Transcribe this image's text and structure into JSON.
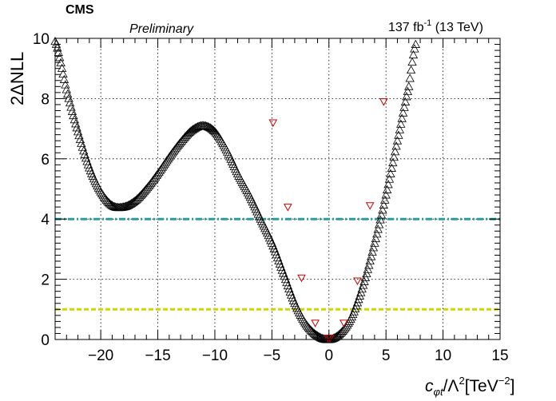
{
  "header": {
    "experiment": "CMS",
    "status": "Preliminary",
    "lumi": "137 fb",
    "lumi_exp": "-1",
    "energy": " (13 TeV)"
  },
  "axes": {
    "ylabel": "2ΔNLL",
    "xlabel_main": "c",
    "xlabel_sub": "φt",
    "xlabel_tail": "/Λ",
    "xlabel_sq": "2",
    "xlabel_unit": "[TeV",
    "xlabel_unit_exp": "−2",
    "xlabel_close": "]"
  },
  "colors": {
    "scan_marker": "#000000",
    "points_marker": "#cc0000",
    "line_2sigma": "#2a9d9d",
    "line_1sigma": "#d4d400",
    "grid": "#000000"
  },
  "chart_data": {
    "type": "scatter",
    "xlim": [
      -24,
      15
    ],
    "ylim": [
      0,
      10
    ],
    "x_ticks": [
      -20,
      -15,
      -10,
      -5,
      0,
      5,
      10,
      15
    ],
    "x_tick_labels": [
      "−20",
      "−15",
      "−10",
      "−5",
      "0",
      "5",
      "10",
      "15"
    ],
    "y_ticks": [
      0,
      2,
      4,
      6,
      8,
      10
    ],
    "y_tick_labels": [
      "0",
      "2",
      "4",
      "6",
      "8",
      "10"
    ],
    "grid": true,
    "hlines": [
      {
        "y": 4.0,
        "style": "dash-dot",
        "color": "#2a9d9d"
      },
      {
        "y": 1.0,
        "style": "dashed",
        "color": "#d4d400"
      }
    ],
    "series": [
      {
        "marker": "open-triangle-up",
        "color": "#000000",
        "curve_knots": {
          "x": [
            -24.0,
            -23.0,
            -22.0,
            -21.0,
            -20.0,
            -19.0,
            -18.0,
            -17.0,
            -16.0,
            -15.0,
            -14.0,
            -13.0,
            -12.0,
            -11.0,
            -10.0,
            -9.0,
            -8.0,
            -7.0,
            -6.0,
            -5.0,
            -4.0,
            -3.0,
            -2.0,
            -1.0,
            0.0,
            1.0,
            2.0,
            3.0,
            4.0,
            5.0,
            6.0,
            7.0,
            7.6
          ],
          "y": [
            9.9,
            8.3,
            6.9,
            5.7,
            4.9,
            4.45,
            4.4,
            4.6,
            5.0,
            5.5,
            6.05,
            6.55,
            6.95,
            7.1,
            6.9,
            6.3,
            5.5,
            4.8,
            4.0,
            3.2,
            2.2,
            1.2,
            0.5,
            0.12,
            0.0,
            0.2,
            0.75,
            1.8,
            3.2,
            4.8,
            6.6,
            8.4,
            9.8
          ]
        },
        "x_step": 0.1
      },
      {
        "marker": "open-triangle-down",
        "color": "#cc0000",
        "x": [
          -4.9,
          -3.6,
          -2.4,
          -1.2,
          -0.1,
          0.1,
          1.3,
          2.5,
          3.6,
          4.8
        ],
        "y": [
          7.2,
          4.4,
          2.05,
          0.55,
          0.05,
          0.05,
          0.55,
          1.95,
          4.45,
          7.9
        ]
      }
    ]
  }
}
